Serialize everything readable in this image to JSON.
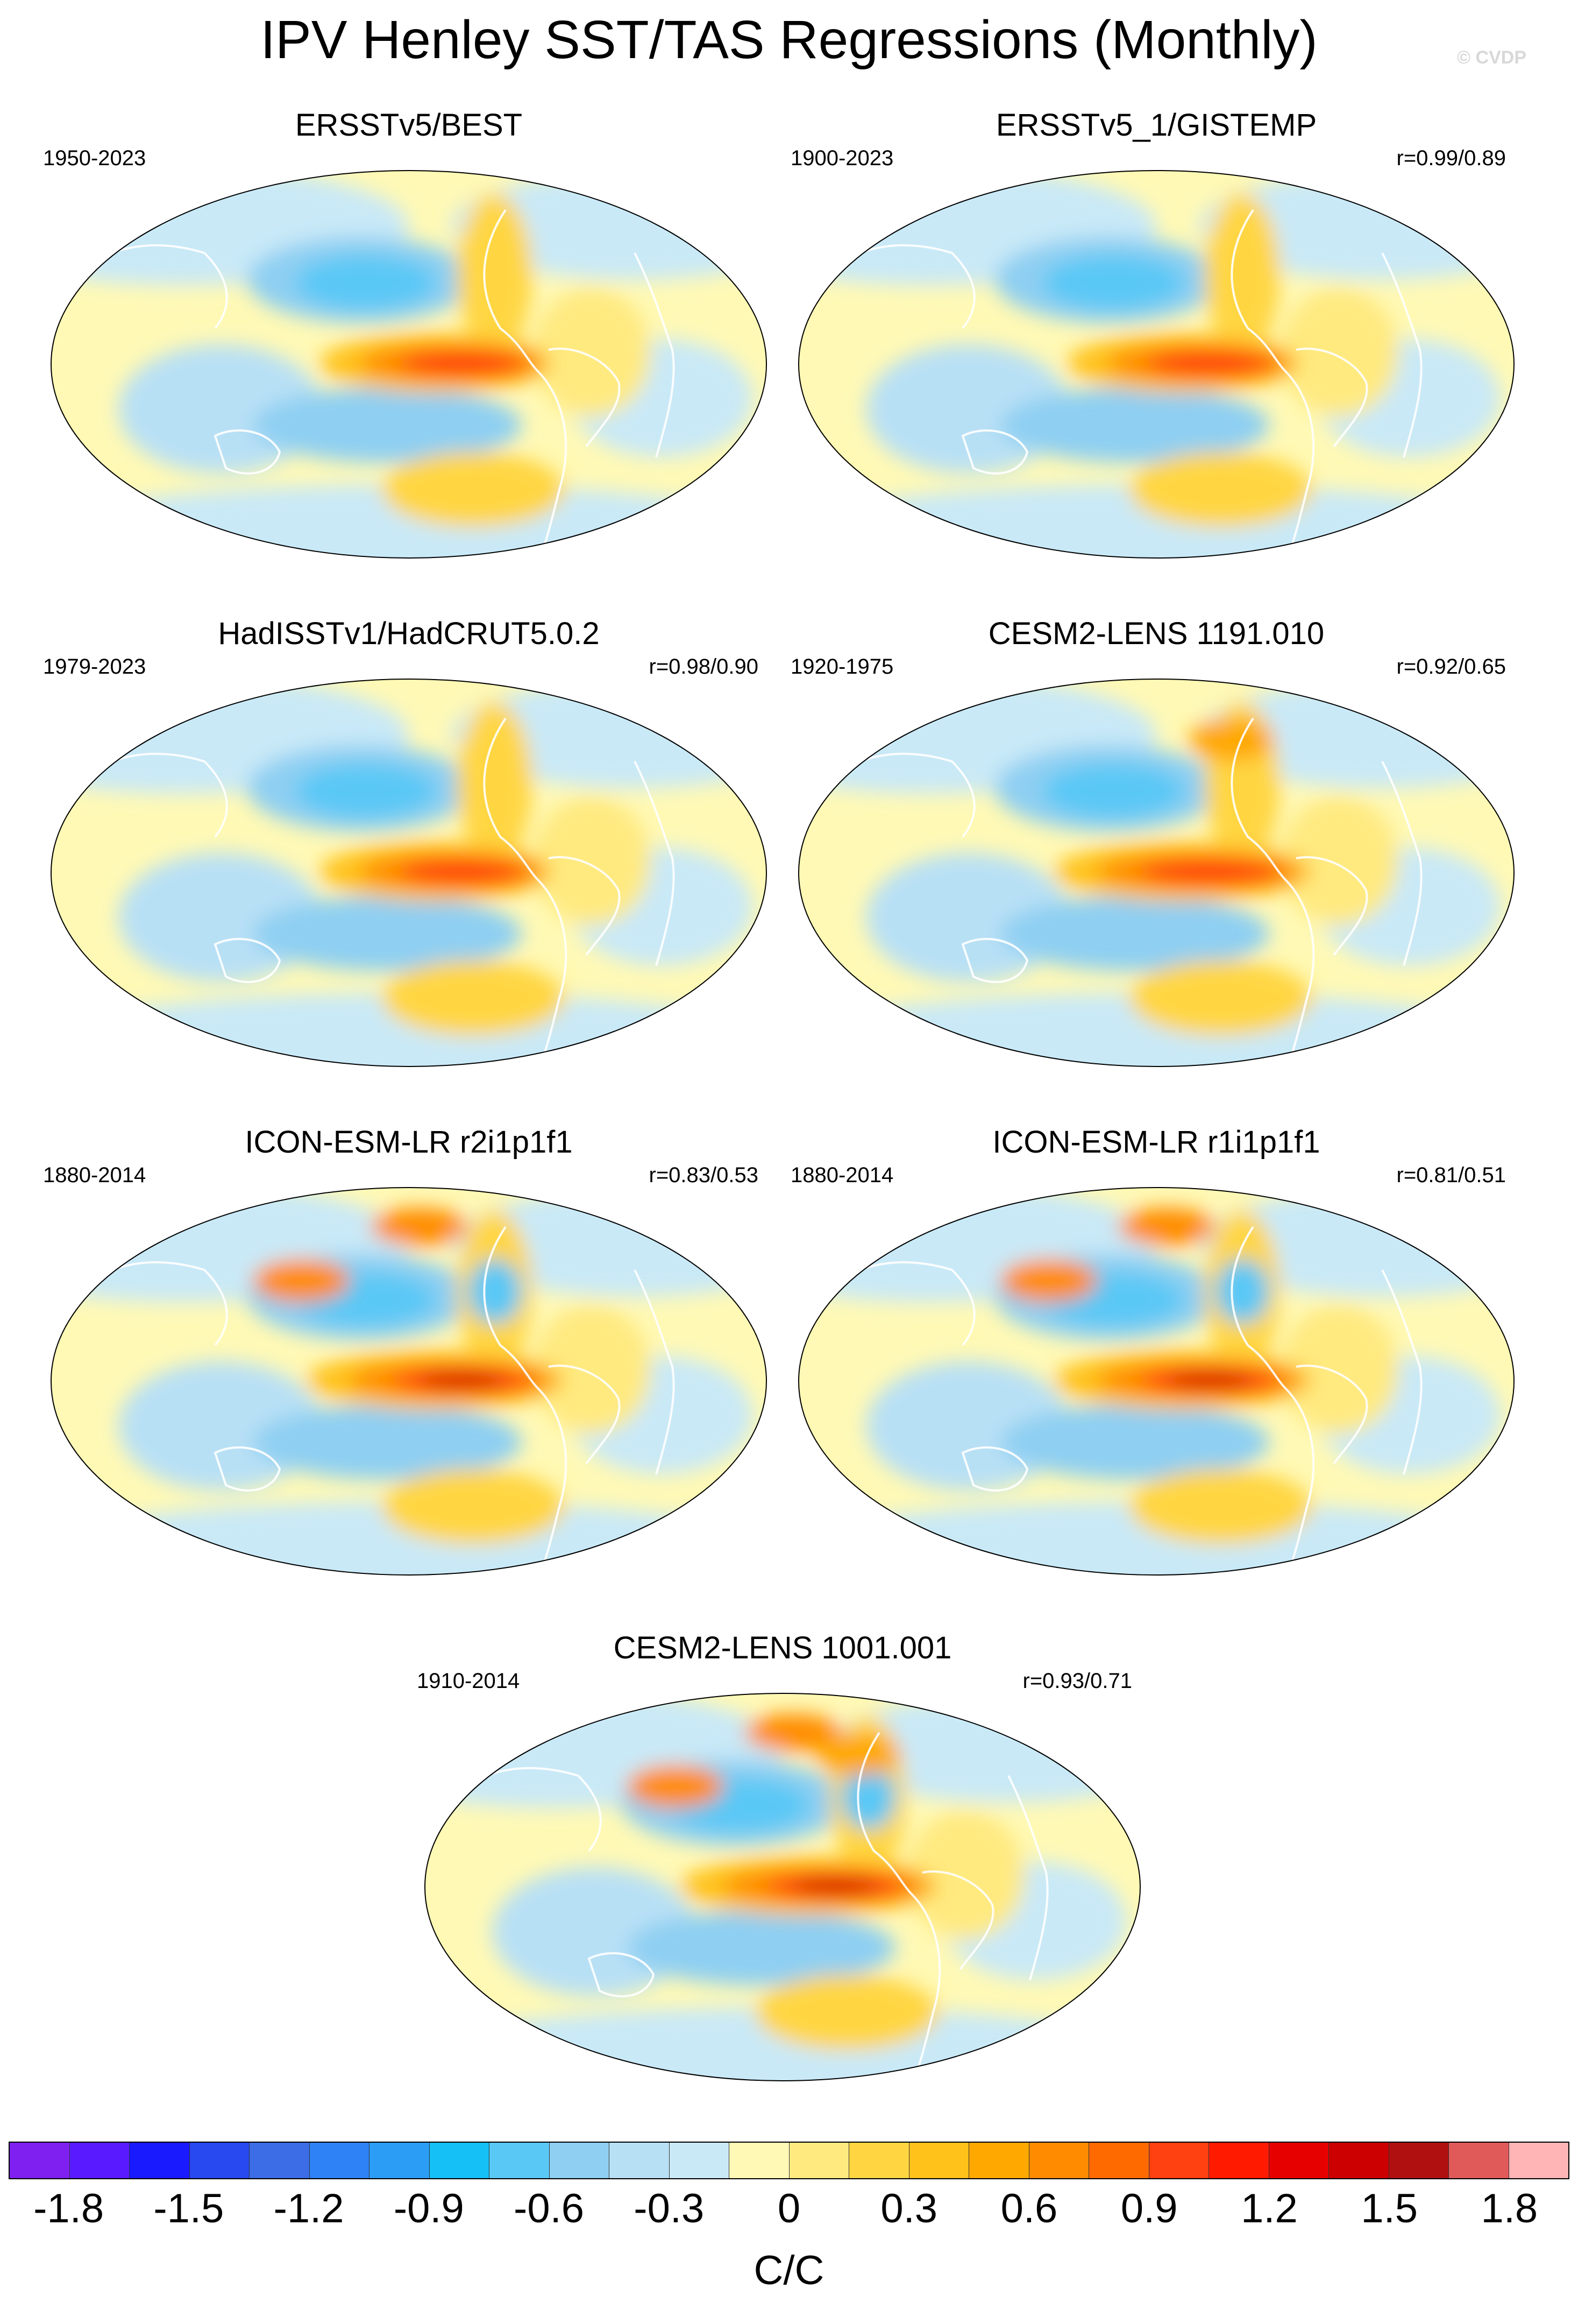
{
  "title": "IPV Henley SST/TAS Regressions (Monthly)",
  "watermark": "© CVDP",
  "panels": [
    {
      "title": "ERSSTv5/BEST",
      "period": "1950-2023",
      "corr": ""
    },
    {
      "title": "ERSSTv5_1/GISTEMP",
      "period": "1900-2023",
      "corr": "r=0.99/0.89"
    },
    {
      "title": "HadISSTv1/HadCRUT5.0.2",
      "period": "1979-2023",
      "corr": "r=0.98/0.90"
    },
    {
      "title": "CESM2-LENS 1191.010",
      "period": "1920-1975",
      "corr": "r=0.92/0.65"
    },
    {
      "title": "ICON-ESM-LR r2i1p1f1",
      "period": "1880-2014",
      "corr": "r=0.83/0.53"
    },
    {
      "title": "ICON-ESM-LR r1i1p1f1",
      "period": "1880-2014",
      "corr": "r=0.81/0.51"
    },
    {
      "title": "CESM2-LENS 1001.001",
      "period": "1910-2014",
      "corr": "r=0.93/0.71"
    }
  ],
  "colorbar": {
    "colors": [
      "#7f1ff0",
      "#5a1aff",
      "#1a1aff",
      "#2848f0",
      "#3c6ce6",
      "#2f82f5",
      "#2b9df5",
      "#14c0f5",
      "#5ac8f5",
      "#8ecff2",
      "#b8e0f5",
      "#c9e9f7",
      "#fff9b5",
      "#ffea80",
      "#ffd642",
      "#ffc21a",
      "#ffa800",
      "#ff8c00",
      "#ff6a00",
      "#ff4010",
      "#ff1a00",
      "#e60000",
      "#cc0000",
      "#b01010",
      "#e05a5a",
      "#ffb5b5"
    ],
    "labels": [
      "-1.8",
      "-1.5",
      "-1.2",
      "-0.9",
      "-0.6",
      "-0.3",
      "0",
      "0.3",
      "0.6",
      "0.9",
      "1.2",
      "1.5",
      "1.8"
    ],
    "units": "C/C"
  }
}
